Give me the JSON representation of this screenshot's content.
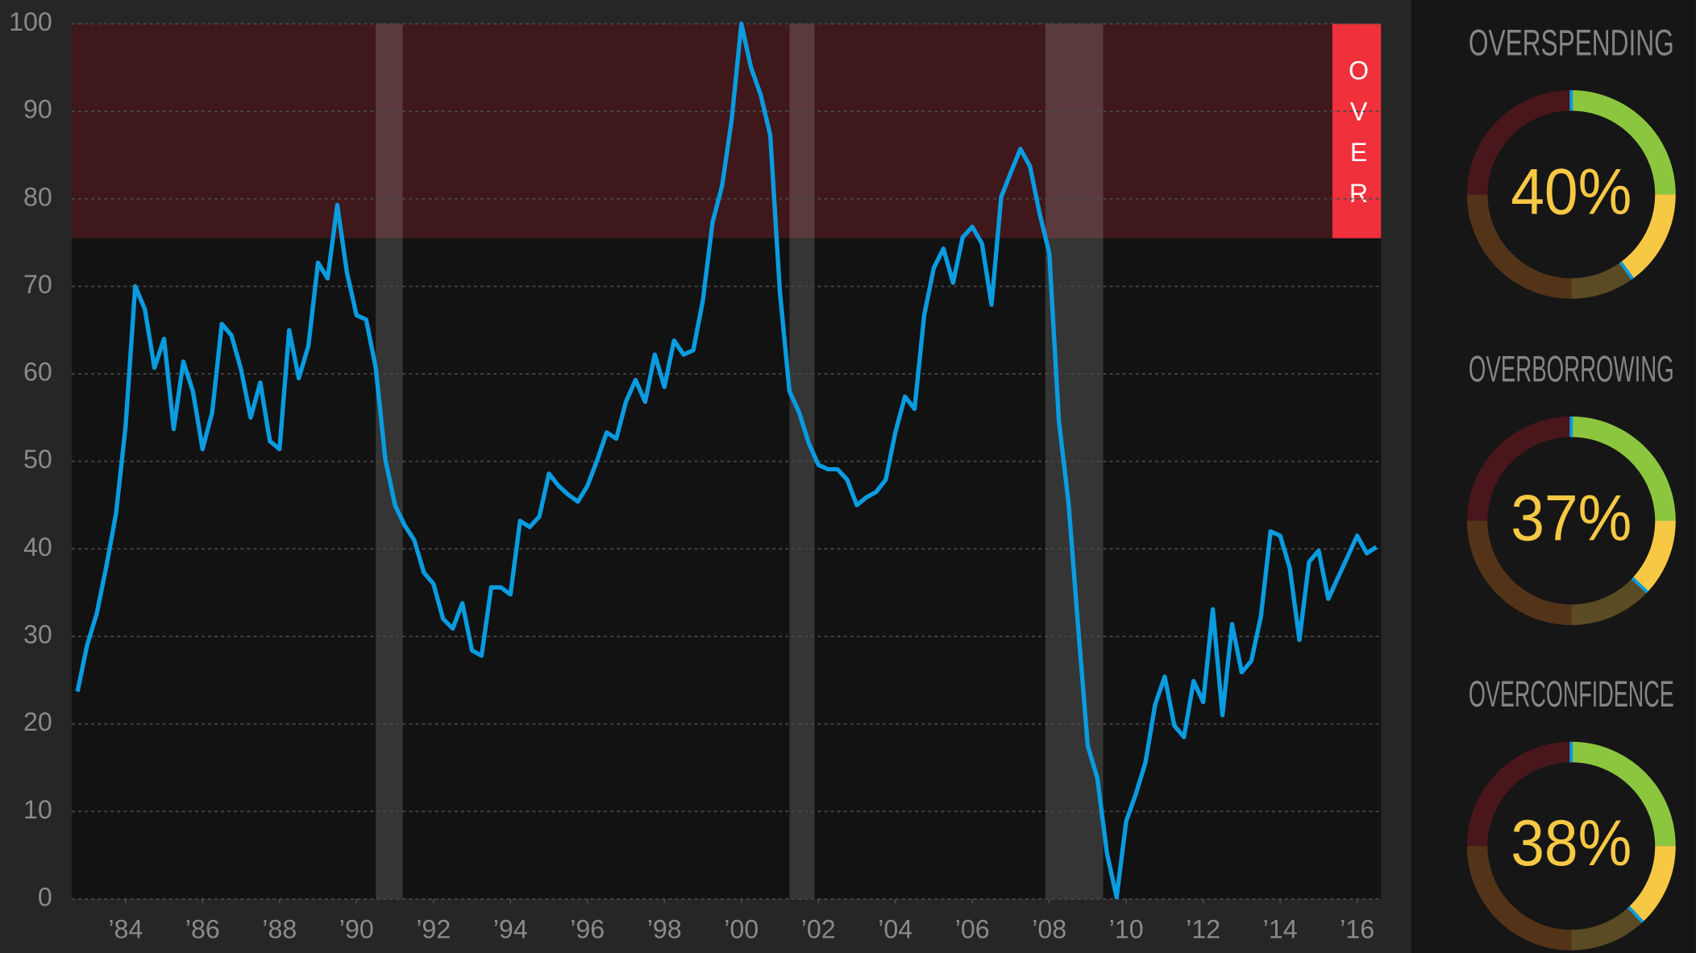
{
  "chart_data": {
    "type": "line",
    "x": [
      1982.75,
      1983,
      1983.25,
      1983.5,
      1983.75,
      1984,
      1984.25,
      1984.5,
      1984.75,
      1985,
      1985.25,
      1985.5,
      1985.75,
      1986,
      1986.25,
      1986.5,
      1986.75,
      1987,
      1987.25,
      1987.5,
      1987.75,
      1988,
      1988.25,
      1988.5,
      1988.75,
      1989,
      1989.25,
      1989.5,
      1989.75,
      1990,
      1990.25,
      1990.5,
      1990.75,
      1991,
      1991.25,
      1991.5,
      1991.75,
      1992,
      1992.25,
      1992.5,
      1992.75,
      1993,
      1993.25,
      1993.5,
      1993.75,
      1994,
      1994.25,
      1994.5,
      1994.75,
      1995,
      1995.25,
      1995.5,
      1995.75,
      1996,
      1996.25,
      1996.5,
      1996.75,
      1997,
      1997.25,
      1997.5,
      1997.75,
      1998,
      1998.25,
      1998.5,
      1998.75,
      1999,
      1999.25,
      1999.5,
      1999.75,
      2000,
      2000.25,
      2000.5,
      2000.75,
      2001,
      2001.25,
      2001.5,
      2001.75,
      2002,
      2002.25,
      2002.5,
      2002.75,
      2003,
      2003.25,
      2003.5,
      2003.75,
      2004,
      2004.25,
      2004.5,
      2004.75,
      2005,
      2005.25,
      2005.5,
      2005.75,
      2006,
      2006.25,
      2006.5,
      2006.75,
      2007,
      2007.25,
      2007.5,
      2007.75,
      2008,
      2008.25,
      2008.5,
      2008.75,
      2009,
      2009.25,
      2009.5,
      2009.75,
      2010,
      2010.25,
      2010.5,
      2010.75,
      2011,
      2011.25,
      2011.5,
      2011.75,
      2012,
      2012.25,
      2012.5,
      2012.75,
      2013,
      2013.25,
      2013.5,
      2013.75,
      2014,
      2014.25,
      2014.5,
      2014.75,
      2015,
      2015.25,
      2015.5,
      2015.75,
      2016,
      2016.25,
      2016.5
    ],
    "values": [
      23.7,
      29,
      32.6,
      38,
      44,
      54,
      70,
      67.4,
      60.7,
      64,
      53.7,
      61.4,
      58,
      51.4,
      55.6,
      65.7,
      64.4,
      60.5,
      55,
      59,
      52.3,
      51.4,
      65,
      59.5,
      63.2,
      72.7,
      70.9,
      79.3,
      71.6,
      66.7,
      66.2,
      60.7,
      50.2,
      45,
      42.7,
      41,
      37.3,
      36,
      32,
      30.9,
      33.8,
      28.4,
      27.8,
      35.6,
      35.6,
      34.8,
      43.2,
      42.5,
      43.7,
      48.6,
      47.2,
      46.2,
      45.4,
      47.2,
      50.1,
      53.3,
      52.6,
      56.8,
      59.3,
      56.8,
      62.2,
      58.5,
      63.8,
      62.2,
      62.7,
      68.4,
      77.3,
      81.5,
      89.1,
      100,
      95,
      91.9,
      87.3,
      69.4,
      58,
      55.6,
      52.1,
      49.6,
      49.1,
      49.1,
      47.9,
      45,
      45.9,
      46.5,
      47.9,
      53.3,
      57.4,
      56,
      66.7,
      72.1,
      74.3,
      70.4,
      75.6,
      76.8,
      74.9,
      67.9,
      80.2,
      83,
      85.7,
      83.7,
      78.3,
      73.8,
      54.6,
      45.3,
      31.1,
      17.5,
      13.8,
      5.2,
      0.2,
      8.9,
      12,
      15.6,
      22.2,
      25.4,
      19.8,
      18.5,
      24.9,
      22.5,
      33.1,
      21,
      31.4,
      25.9,
      27.2,
      32.3,
      42,
      41.5,
      37.8,
      29.6,
      38.5,
      39.8,
      34.3,
      36.7,
      39.1,
      41.5,
      39.5,
      40.2
    ],
    "color": "#0a9be0",
    "xlim": [
      1982.6,
      2016.62
    ],
    "ylim": [
      0,
      100
    ],
    "xticks": [
      {
        "value": 1984,
        "label": "’84"
      },
      {
        "value": 1986,
        "label": "’86"
      },
      {
        "value": 1988,
        "label": "’88"
      },
      {
        "value": 1990,
        "label": "’90"
      },
      {
        "value": 1992,
        "label": "’92"
      },
      {
        "value": 1994,
        "label": "’94"
      },
      {
        "value": 1996,
        "label": "’96"
      },
      {
        "value": 1998,
        "label": "’98"
      },
      {
        "value": 2000,
        "label": "’00"
      },
      {
        "value": 2002,
        "label": "’02"
      },
      {
        "value": 2004,
        "label": "’04"
      },
      {
        "value": 2006,
        "label": "’06"
      },
      {
        "value": 2008,
        "label": "’08"
      },
      {
        "value": 2010,
        "label": "’10"
      },
      {
        "value": 2012,
        "label": "’12"
      },
      {
        "value": 2014,
        "label": "’14"
      },
      {
        "value": 2016,
        "label": "’16"
      }
    ],
    "yticks": [
      0,
      10,
      20,
      30,
      40,
      50,
      60,
      70,
      80,
      90,
      100
    ],
    "grid": true,
    "shaded_ranges": [
      [
        1990.5,
        1991.2
      ],
      [
        2001.25,
        2001.9
      ],
      [
        2007.9,
        2009.4
      ]
    ],
    "threshold": 75.5,
    "threshold_label": "OVER",
    "threshold_color": "#f0303a"
  },
  "gauges": {
    "range": [
      0,
      100
    ],
    "colors": [
      "#8cc63f",
      "#f7c844",
      "#e07b20",
      "#c0182b"
    ],
    "marker_color": "#0a9be0",
    "items": [
      {
        "title": "OVERSPENDING",
        "value": 40,
        "value_label": "40%"
      },
      {
        "title": "OVERBORROWING",
        "value": 37,
        "value_label": "37%"
      },
      {
        "title": "OVERCONFIDENCE",
        "value": 38,
        "value_label": "38%"
      }
    ]
  }
}
